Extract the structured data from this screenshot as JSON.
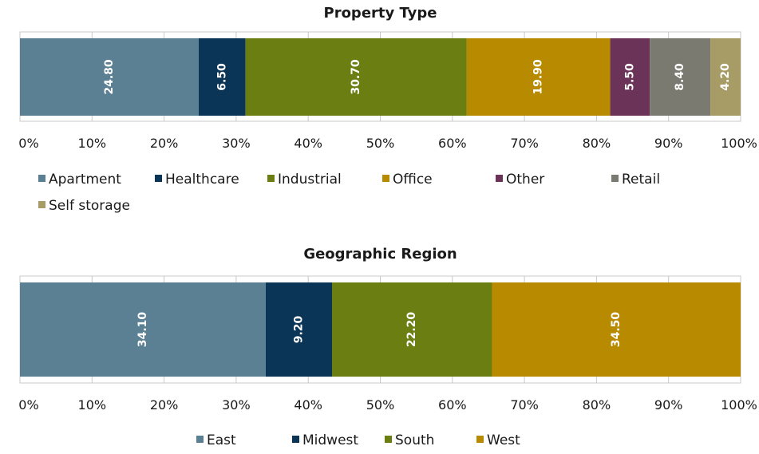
{
  "chart_data": [
    {
      "type": "bar",
      "orientation": "horizontal",
      "stacked": true,
      "title": "Property Type",
      "xlim": [
        0,
        100
      ],
      "x_ticks": [
        "0%",
        "10%",
        "20%",
        "30%",
        "40%",
        "50%",
        "60%",
        "70%",
        "80%",
        "90%",
        "100%"
      ],
      "grid": true,
      "legend_position": "bottom",
      "series": [
        {
          "name": "Apartment",
          "value": 24.8,
          "label": "24.80",
          "color": "#5b7f93"
        },
        {
          "name": "Healthcare",
          "value": 6.5,
          "label": "6.50",
          "color": "#0b3557"
        },
        {
          "name": "Industrial",
          "value": 30.7,
          "label": "30.70",
          "color": "#6b7e12"
        },
        {
          "name": "Office",
          "value": 19.9,
          "label": "19.90",
          "color": "#b88a00"
        },
        {
          "name": "Other",
          "value": 5.5,
          "label": "5.50",
          "color": "#6b3358"
        },
        {
          "name": "Retail",
          "value": 8.4,
          "label": "8.40",
          "color": "#7a7a70"
        },
        {
          "name": "Self storage",
          "value": 4.2,
          "label": "4.20",
          "color": "#a89c66"
        }
      ]
    },
    {
      "type": "bar",
      "orientation": "horizontal",
      "stacked": true,
      "title": "Geographic Region",
      "xlim": [
        0,
        100
      ],
      "x_ticks": [
        "0%",
        "10%",
        "20%",
        "30%",
        "40%",
        "50%",
        "60%",
        "70%",
        "80%",
        "90%",
        "100%"
      ],
      "grid": true,
      "legend_position": "bottom",
      "series": [
        {
          "name": "East",
          "value": 34.1,
          "label": "34.10",
          "color": "#5b7f93"
        },
        {
          "name": "Midwest",
          "value": 9.2,
          "label": "9.20",
          "color": "#0b3557"
        },
        {
          "name": "South",
          "value": 22.2,
          "label": "22.20",
          "color": "#6b7e12"
        },
        {
          "name": "West",
          "value": 34.5,
          "label": "34.50",
          "color": "#b88a00"
        }
      ]
    }
  ]
}
